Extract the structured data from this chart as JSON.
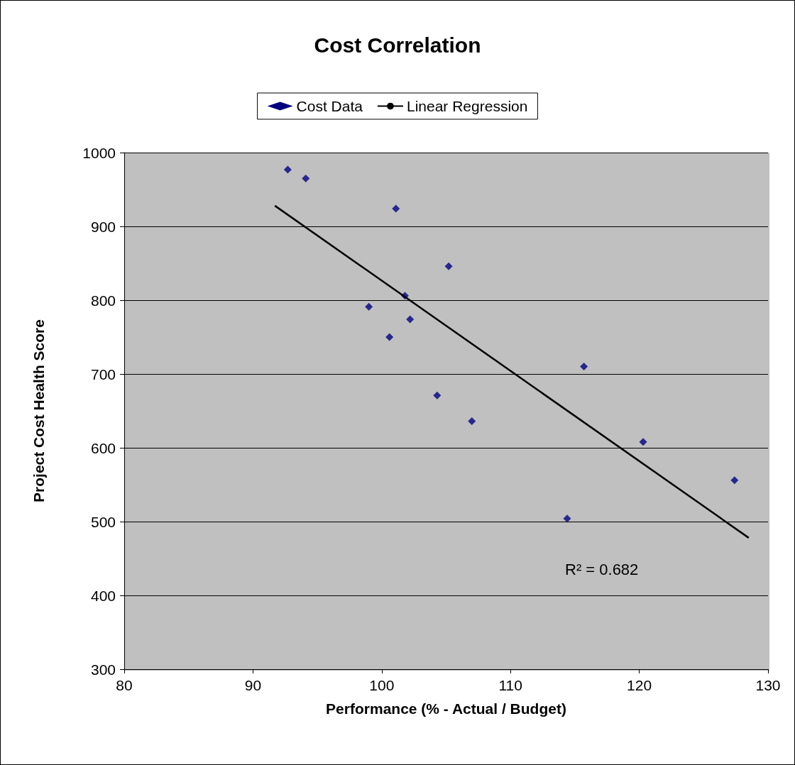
{
  "chart_data": {
    "type": "scatter",
    "title": "Cost Correlation",
    "xlabel": "Performance (% - Actual / Budget)",
    "ylabel": "Project Cost Health Score",
    "xlim": [
      80,
      130
    ],
    "xticks": [
      80,
      90,
      100,
      110,
      120,
      130
    ],
    "ylim": [
      300,
      1000
    ],
    "yticks": [
      300,
      400,
      500,
      600,
      700,
      800,
      900,
      1000
    ],
    "grid": "y",
    "legend": "top",
    "marker": "diamond",
    "series": [
      {
        "name": "Cost Data",
        "type": "scatter",
        "color": "#000080",
        "x": [
          92.7,
          94.1,
          101.1,
          105.2,
          101.8,
          99.0,
          102.2,
          100.6,
          115.7,
          104.3,
          107.0,
          120.3,
          127.4,
          114.4
        ],
        "values": [
          977,
          965,
          924,
          846,
          806,
          791,
          774,
          750,
          710,
          671,
          636,
          608,
          556,
          504
        ]
      },
      {
        "name": "Linear Regression",
        "type": "line",
        "color": "#000000",
        "marker": "none",
        "line_style": "solid",
        "x": [
          91.7,
          128.5
        ],
        "values": [
          928,
          478
        ]
      }
    ],
    "annotations": [
      "R² = 0.682"
    ]
  }
}
